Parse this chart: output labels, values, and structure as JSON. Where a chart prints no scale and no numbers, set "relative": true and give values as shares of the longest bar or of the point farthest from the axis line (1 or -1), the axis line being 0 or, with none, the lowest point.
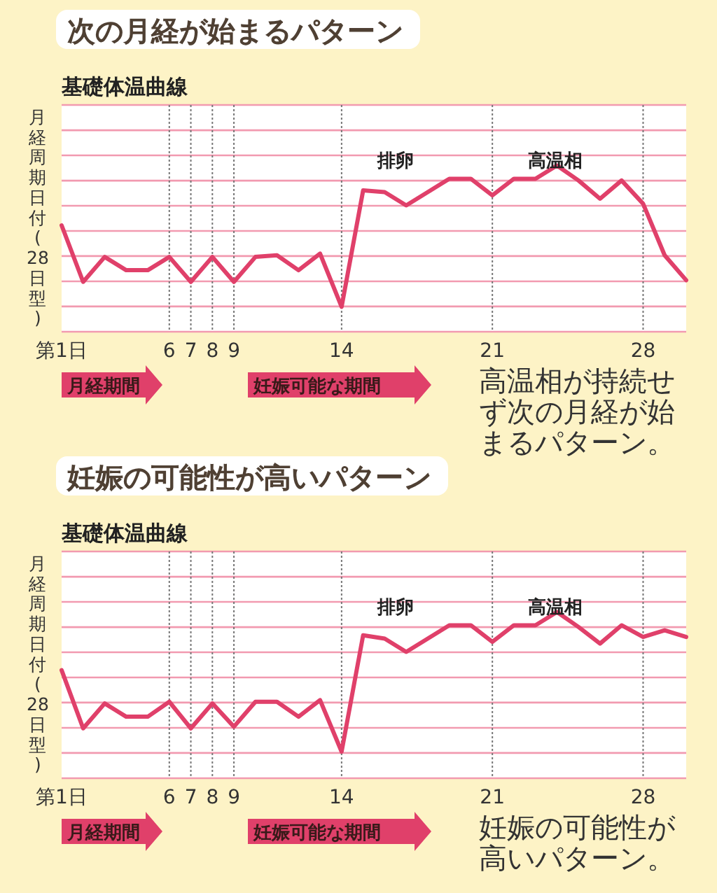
{
  "chart_data": [
    {
      "type": "line",
      "title": "次の月経が始まるパターン",
      "subtitle": "基礎体温曲線",
      "ylabel": "月経周期日付(28日型)",
      "relative": true,
      "color": "#e0406a",
      "grid": "x",
      "legend": false,
      "marker": "none",
      "line_style": "solid",
      "ref_lines": [
        {
          "axis": "y",
          "value": 0,
          "color": "#f29ab0"
        },
        {
          "axis": "y",
          "value": 0.152,
          "color": "#f29ab0"
        },
        {
          "axis": "y",
          "value": 0.303,
          "color": "#f29ab0"
        },
        {
          "axis": "y",
          "value": 0.455,
          "color": "#f29ab0"
        },
        {
          "axis": "y",
          "value": 0.606,
          "color": "#f29ab0"
        },
        {
          "axis": "y",
          "value": 0.758,
          "color": "#f29ab0"
        },
        {
          "axis": "y",
          "value": 0.909,
          "color": "#f29ab0"
        },
        {
          "axis": "y",
          "value": 1.061,
          "color": "#f29ab0"
        },
        {
          "axis": "y",
          "value": 1.212,
          "color": "#f29ab0"
        },
        {
          "axis": "y",
          "value": 1.364,
          "color": "#f29ab0"
        }
      ],
      "xlim": [
        1,
        30
      ],
      "xticks": [
        {
          "value": 1,
          "label": "第1日"
        },
        6,
        7,
        8,
        9,
        14,
        21,
        28
      ],
      "x": [
        1,
        2,
        3,
        4,
        5,
        6,
        7,
        8,
        9,
        10,
        11,
        12,
        13,
        14,
        15,
        16,
        17,
        18,
        19,
        20,
        21,
        22,
        23,
        24,
        25,
        26,
        27,
        28,
        29,
        30
      ],
      "values": [
        0.64,
        0.3,
        0.45,
        0.37,
        0.37,
        0.45,
        0.3,
        0.45,
        0.3,
        0.45,
        0.46,
        0.37,
        0.47,
        0.15,
        0.85,
        0.84,
        0.76,
        0.84,
        0.92,
        0.92,
        0.82,
        0.92,
        0.92,
        1,
        0.91,
        0.8,
        0.91,
        0.77,
        0.46,
        0.31
      ],
      "annotations": [
        "排卵",
        "高温相",
        "月経期間",
        "妊娠可能な期間",
        "高温相が持続せず次の月経が始まるパターン。"
      ]
    },
    {
      "type": "line",
      "title": "妊娠の可能性が高いパターン",
      "subtitle": "基礎体温曲線",
      "ylabel": "月経周期日付(28日型)",
      "relative": true,
      "color": "#e0406a",
      "grid": "x",
      "legend": false,
      "marker": "none",
      "line_style": "solid",
      "ref_lines": [
        {
          "axis": "y",
          "value": 0,
          "color": "#f29ab0"
        },
        {
          "axis": "y",
          "value": 0.152,
          "color": "#f29ab0"
        },
        {
          "axis": "y",
          "value": 0.303,
          "color": "#f29ab0"
        },
        {
          "axis": "y",
          "value": 0.455,
          "color": "#f29ab0"
        },
        {
          "axis": "y",
          "value": 0.606,
          "color": "#f29ab0"
        },
        {
          "axis": "y",
          "value": 0.758,
          "color": "#f29ab0"
        },
        {
          "axis": "y",
          "value": 0.909,
          "color": "#f29ab0"
        },
        {
          "axis": "y",
          "value": 1.061,
          "color": "#f29ab0"
        },
        {
          "axis": "y",
          "value": 1.212,
          "color": "#f29ab0"
        },
        {
          "axis": "y",
          "value": 1.364,
          "color": "#f29ab0"
        }
      ],
      "xlim": [
        1,
        30
      ],
      "xticks": [
        {
          "value": 1,
          "label": "第1日"
        },
        6,
        7,
        8,
        9,
        14,
        21,
        28
      ],
      "x": [
        1,
        2,
        3,
        4,
        5,
        6,
        7,
        8,
        9,
        10,
        11,
        12,
        13,
        14,
        15,
        16,
        17,
        18,
        19,
        20,
        21,
        22,
        23,
        24,
        25,
        26,
        27,
        28,
        29,
        30
      ],
      "values": [
        0.65,
        0.3,
        0.45,
        0.37,
        0.37,
        0.46,
        0.3,
        0.45,
        0.31,
        0.46,
        0.46,
        0.37,
        0.47,
        0.16,
        0.86,
        0.84,
        0.76,
        0.84,
        0.92,
        0.92,
        0.82,
        0.92,
        0.92,
        1,
        0.91,
        0.81,
        0.92,
        0.85,
        0.89,
        0.85
      ],
      "annotations": [
        "排卵",
        "高温相",
        "月経期間",
        "妊娠可能な期間",
        "妊娠の可能性が高いパターン。"
      ]
    }
  ]
}
